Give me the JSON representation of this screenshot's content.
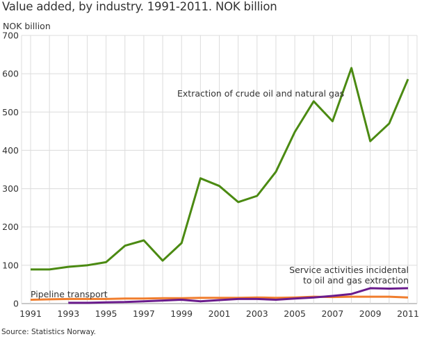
{
  "chart_data": {
    "type": "line",
    "title": "Value added, by industry. 1991-2011. NOK billion",
    "ylabel": "NOK billion",
    "xlabel": "",
    "source": "Source: Statistics Norway.",
    "ylim": [
      0,
      700
    ],
    "xlim": [
      1991,
      2011
    ],
    "grid": true,
    "yticks": [
      0,
      100,
      200,
      300,
      400,
      500,
      600,
      700
    ],
    "xticks": [
      1991,
      1993,
      1995,
      1997,
      1999,
      2001,
      2003,
      2005,
      2007,
      2009,
      2011
    ],
    "x": [
      1991,
      1992,
      1993,
      1994,
      1995,
      1996,
      1997,
      1998,
      1999,
      2000,
      2001,
      2002,
      2003,
      2004,
      2005,
      2006,
      2007,
      2008,
      2009,
      2010,
      2011
    ],
    "series": [
      {
        "name": "Extraction of crude oil and natural gas",
        "color": "#4b8a12",
        "values": [
          89,
          89,
          96,
          100,
          108,
          151,
          165,
          112,
          158,
          327,
          307,
          265,
          281,
          344,
          448,
          528,
          476,
          615,
          424,
          470,
          586
        ],
        "label_lines": [
          "Extraction of crude oil and natural gas"
        ]
      },
      {
        "name": "Pipeline transport",
        "color": "#f07d2d",
        "values": [
          10,
          11,
          12,
          12,
          12,
          13,
          13,
          14,
          14,
          15,
          15,
          15,
          16,
          15,
          16,
          18,
          17,
          18,
          18,
          18,
          16
        ],
        "label_lines": [
          "Pipeline transport"
        ]
      },
      {
        "name": "Service activities incidental to oil and gas extraction",
        "color": "#6a1b8c",
        "values": [
          null,
          null,
          2,
          2,
          3,
          4,
          6,
          8,
          10,
          6,
          9,
          12,
          12,
          10,
          13,
          16,
          20,
          25,
          40,
          39,
          40
        ],
        "label_lines": [
          "Service activities incidental",
          "to oil and gas extraction"
        ]
      }
    ]
  }
}
